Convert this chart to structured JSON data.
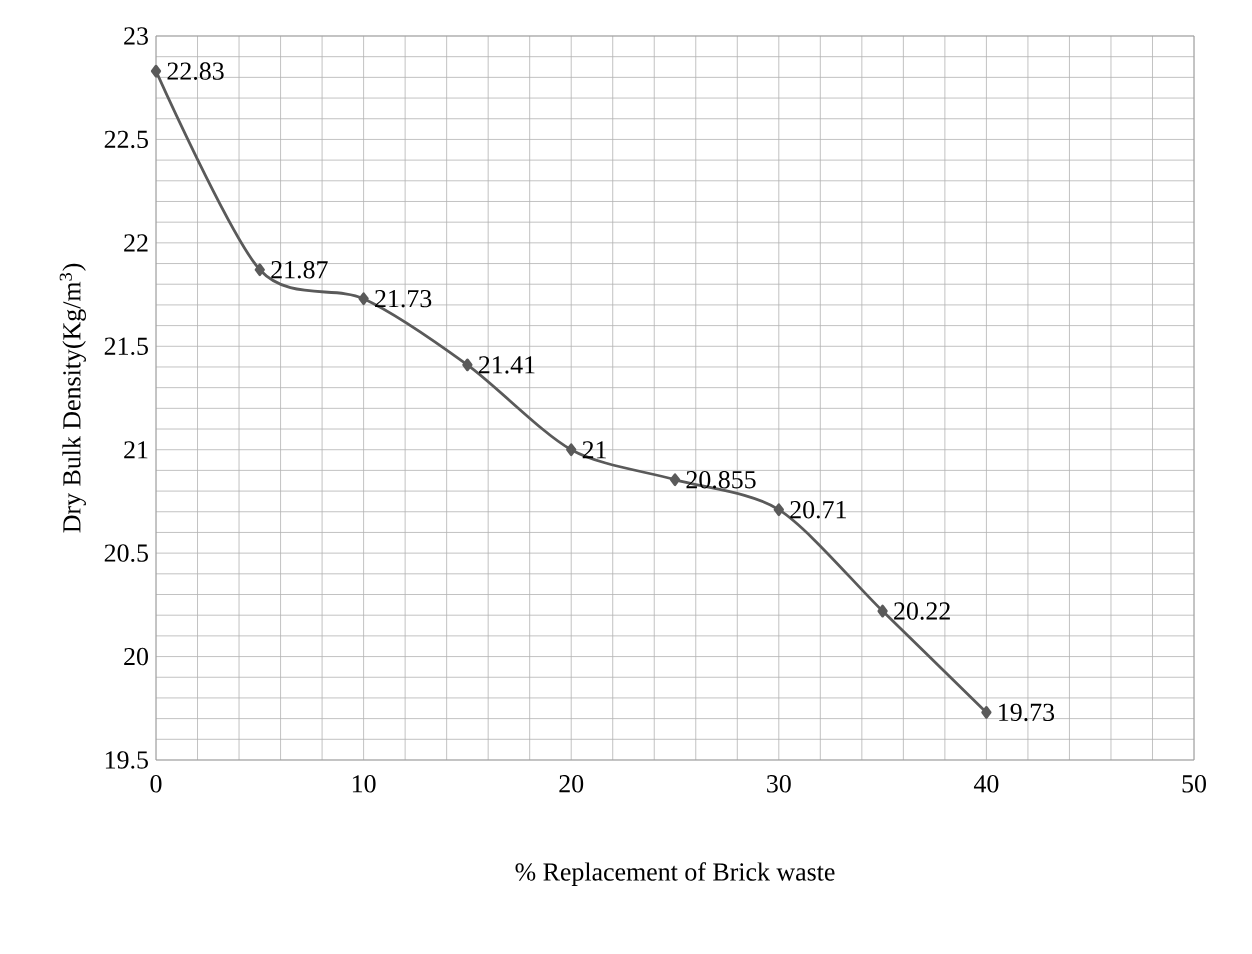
{
  "chart_data": {
    "type": "line",
    "xlabel": "% Replacement of Brick waste",
    "ylabel": "Dry Bulk Density(Kg/m$^{3}$)",
    "x": [
      0,
      5,
      10,
      15,
      20,
      25,
      30,
      35,
      40
    ],
    "series": [
      {
        "color": "#5a5a5a",
        "values": [
          22.83,
          21.87,
          21.73,
          21.41,
          21,
          20.855,
          20.71,
          20.22,
          19.73
        ]
      }
    ],
    "xlim": [
      0,
      50
    ],
    "ylim": [
      19.5,
      23
    ],
    "xticks": [
      0,
      10,
      20,
      30,
      40,
      50
    ],
    "yticks": [
      19.5,
      20,
      20.5,
      21,
      21.5,
      22,
      22.5,
      23
    ],
    "grid": true,
    "marker": "diamond",
    "line_style": "solid",
    "data_labels": true
  }
}
